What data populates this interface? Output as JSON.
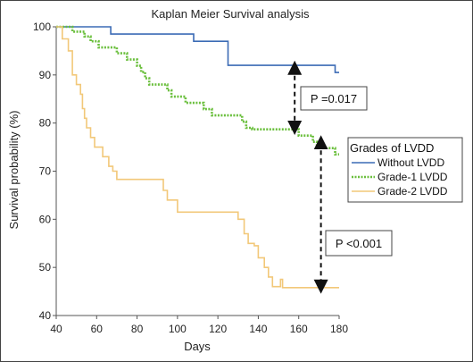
{
  "chart_data": {
    "type": "line",
    "title": "Kaplan Meier Survival analysis",
    "xlabel": "Days",
    "ylabel": "Survival probability (%)",
    "xlim": [
      40,
      180
    ],
    "ylim": [
      40,
      100
    ],
    "xticks": [
      40,
      60,
      80,
      100,
      120,
      140,
      160,
      180
    ],
    "yticks": [
      40,
      50,
      60,
      70,
      80,
      90,
      100
    ],
    "legend": {
      "title": "Grades of LVDD",
      "position": "right"
    },
    "series": [
      {
        "name": "Without LVDD",
        "color": "#3b6bb5",
        "dash": "solid",
        "points": [
          [
            40,
            100
          ],
          [
            67,
            100
          ],
          [
            67,
            98.5
          ],
          [
            108,
            98.5
          ],
          [
            108,
            97
          ],
          [
            125,
            97
          ],
          [
            125,
            92
          ],
          [
            178,
            92
          ],
          [
            178,
            90.5
          ],
          [
            180,
            90.5
          ]
        ]
      },
      {
        "name": "Grade-1 LVDD",
        "color": "#6abf3c",
        "dash": "dotted",
        "points": [
          [
            40,
            100
          ],
          [
            48,
            100
          ],
          [
            48,
            99
          ],
          [
            54,
            99
          ],
          [
            54,
            98
          ],
          [
            57,
            98
          ],
          [
            57,
            97
          ],
          [
            61,
            97
          ],
          [
            61,
            95.7
          ],
          [
            70,
            95.7
          ],
          [
            70,
            94.5
          ],
          [
            75,
            94.5
          ],
          [
            75,
            93.2
          ],
          [
            80,
            93.2
          ],
          [
            80,
            91.9
          ],
          [
            82,
            91.9
          ],
          [
            82,
            90.6
          ],
          [
            84,
            90.6
          ],
          [
            84,
            89.3
          ],
          [
            86,
            89.3
          ],
          [
            86,
            88
          ],
          [
            95,
            88
          ],
          [
            95,
            86.8
          ],
          [
            97,
            86.8
          ],
          [
            97,
            85.5
          ],
          [
            104,
            85.5
          ],
          [
            104,
            84.2
          ],
          [
            113,
            84.2
          ],
          [
            113,
            82.9
          ],
          [
            117,
            82.9
          ],
          [
            117,
            81.6
          ],
          [
            132,
            81.6
          ],
          [
            132,
            80.3
          ],
          [
            134,
            80.3
          ],
          [
            134,
            79
          ],
          [
            137,
            79
          ],
          [
            137,
            78.7
          ],
          [
            160,
            78.7
          ],
          [
            160,
            77.4
          ],
          [
            167,
            77.4
          ],
          [
            167,
            76.1
          ],
          [
            169,
            76.1
          ],
          [
            169,
            74.8
          ],
          [
            178,
            74.8
          ],
          [
            178,
            73.5
          ],
          [
            180,
            73.5
          ]
        ]
      },
      {
        "name": "Grade-2 LVDD",
        "color": "#f2c879",
        "dash": "solid",
        "points": [
          [
            40,
            100
          ],
          [
            43,
            100
          ],
          [
            43,
            97.5
          ],
          [
            46,
            97.5
          ],
          [
            46,
            95
          ],
          [
            48,
            95
          ],
          [
            48,
            90
          ],
          [
            50,
            90
          ],
          [
            50,
            88
          ],
          [
            52,
            88
          ],
          [
            52,
            86
          ],
          [
            53,
            86
          ],
          [
            53,
            83
          ],
          [
            54,
            83
          ],
          [
            54,
            81
          ],
          [
            55,
            81
          ],
          [
            55,
            79
          ],
          [
            57,
            79
          ],
          [
            57,
            77
          ],
          [
            59,
            77
          ],
          [
            59,
            75
          ],
          [
            63,
            75
          ],
          [
            63,
            73
          ],
          [
            66,
            73
          ],
          [
            66,
            71
          ],
          [
            68,
            71
          ],
          [
            68,
            70
          ],
          [
            70,
            70
          ],
          [
            70,
            68.3
          ],
          [
            93,
            68.3
          ],
          [
            93,
            66
          ],
          [
            95,
            66
          ],
          [
            95,
            64
          ],
          [
            100,
            64
          ],
          [
            100,
            61.5
          ],
          [
            130,
            61.5
          ],
          [
            130,
            60
          ],
          [
            133,
            60
          ],
          [
            133,
            57
          ],
          [
            135,
            57
          ],
          [
            135,
            55
          ],
          [
            138,
            55
          ],
          [
            138,
            54.5
          ],
          [
            140,
            54.5
          ],
          [
            140,
            52
          ],
          [
            143,
            52
          ],
          [
            143,
            50
          ],
          [
            145,
            50
          ],
          [
            145,
            48
          ],
          [
            147,
            48
          ],
          [
            147,
            46
          ],
          [
            151,
            46
          ],
          [
            151,
            47.5
          ],
          [
            152,
            47.5
          ],
          [
            152,
            45.8
          ],
          [
            180,
            45.8
          ]
        ]
      }
    ],
    "annotations": [
      {
        "text": "P =0.017",
        "x1": 158,
        "y1": 91.5,
        "x2": 158,
        "y2": 79
      },
      {
        "text": "P <0.001",
        "x1": 171,
        "y1": 76,
        "x2": 171,
        "y2": 46
      }
    ]
  }
}
